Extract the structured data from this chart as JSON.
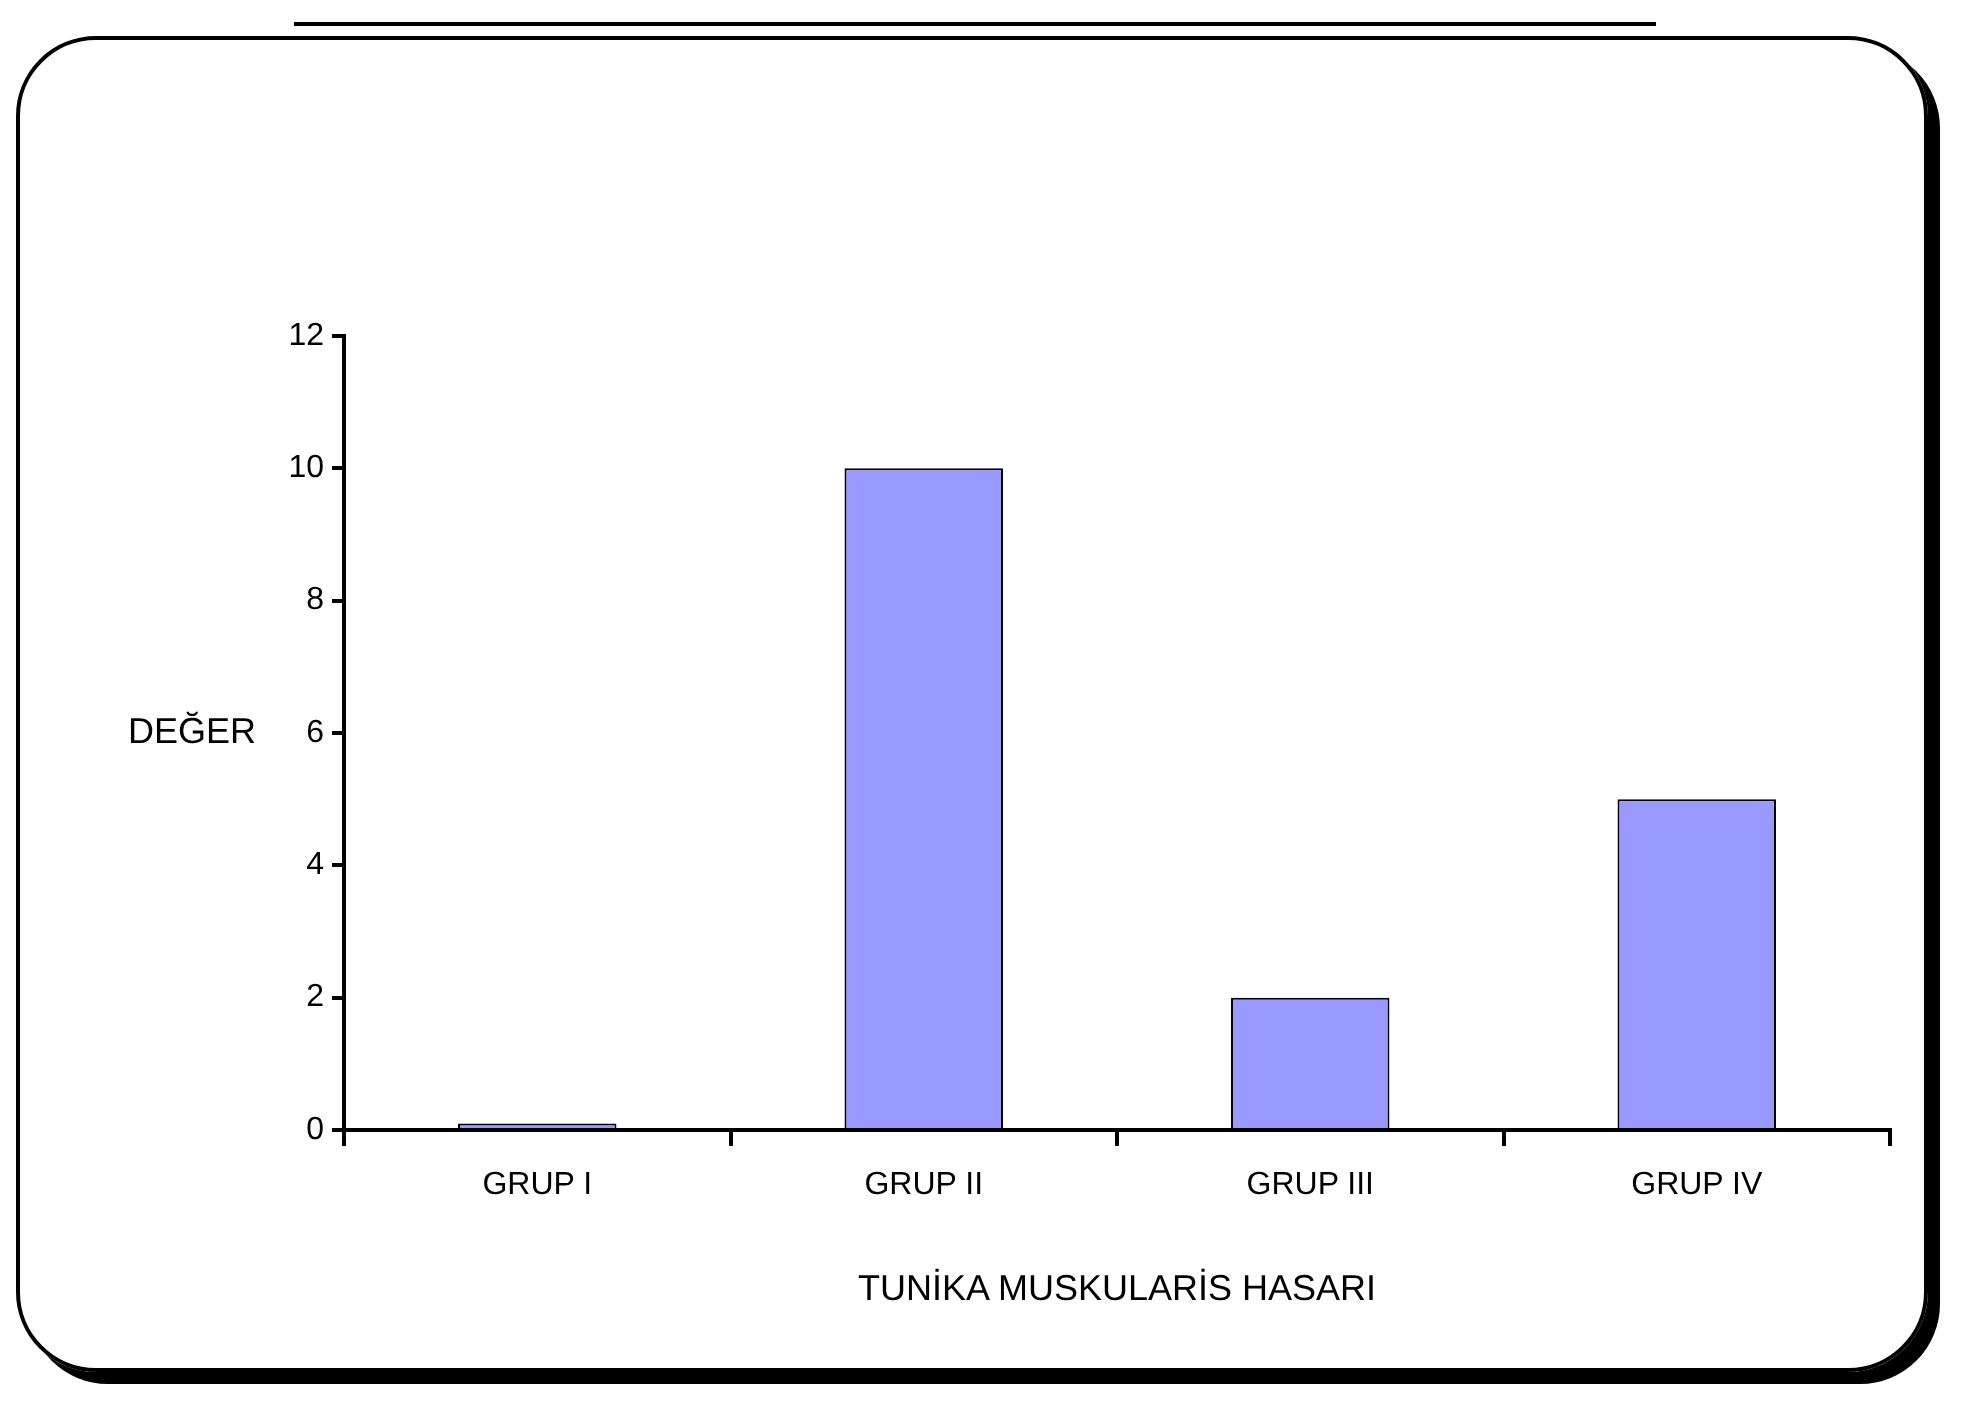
{
  "chart_data": {
    "type": "bar",
    "xlabel": "TUNİKA MUSKULARİS HASARI",
    "ylabel": "DEĞER",
    "categories": [
      "GRUP I",
      "GRUP II",
      "GRUP III",
      "GRUP IV"
    ],
    "values": [
      0.1,
      10,
      2,
      5
    ],
    "color": "#9999ff",
    "ylim": [
      0,
      12
    ],
    "yticks": [
      0,
      2,
      4,
      6,
      8,
      10,
      12
    ],
    "grid": false,
    "legend": false
  }
}
